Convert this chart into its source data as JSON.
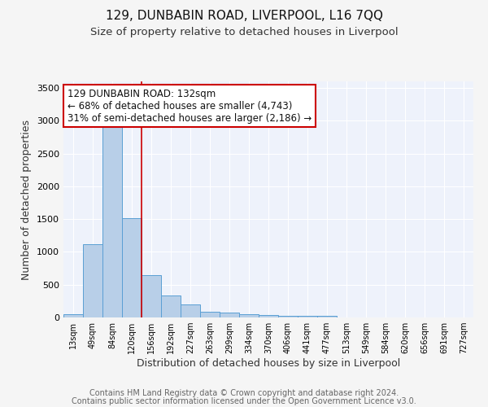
{
  "title": "129, DUNBABIN ROAD, LIVERPOOL, L16 7QQ",
  "subtitle": "Size of property relative to detached houses in Liverpool",
  "xlabel": "Distribution of detached houses by size in Liverpool",
  "ylabel": "Number of detached properties",
  "bar_color": "#b8cfe8",
  "bar_edge_color": "#5a9fd4",
  "background_color": "#eef2fb",
  "grid_color": "#ffffff",
  "annotation_text": "129 DUNBABIN ROAD: 132sqm\n← 68% of detached houses are smaller (4,743)\n31% of semi-detached houses are larger (2,186) →",
  "vline_color": "#cc0000",
  "ylim": [
    0,
    3600
  ],
  "yticks": [
    0,
    500,
    1000,
    1500,
    2000,
    2500,
    3000,
    3500
  ],
  "bin_labels": [
    "13sqm",
    "49sqm",
    "84sqm",
    "120sqm",
    "156sqm",
    "192sqm",
    "227sqm",
    "263sqm",
    "299sqm",
    "334sqm",
    "370sqm",
    "406sqm",
    "441sqm",
    "477sqm",
    "513sqm",
    "549sqm",
    "584sqm",
    "620sqm",
    "656sqm",
    "691sqm",
    "727sqm"
  ],
  "bar_heights": [
    55,
    1120,
    3050,
    1510,
    640,
    330,
    195,
    90,
    75,
    55,
    40,
    30,
    25,
    25,
    0,
    0,
    0,
    0,
    0,
    0,
    0
  ],
  "footer_line1": "Contains HM Land Registry data © Crown copyright and database right 2024.",
  "footer_line2": "Contains public sector information licensed under the Open Government Licence v3.0.",
  "title_fontsize": 11,
  "subtitle_fontsize": 9.5,
  "annotation_box_color": "#ffffff",
  "annotation_box_edge": "#cc0000",
  "annotation_fontsize": 8.5,
  "footer_fontsize": 7,
  "ylabel_fontsize": 9,
  "xlabel_fontsize": 9
}
